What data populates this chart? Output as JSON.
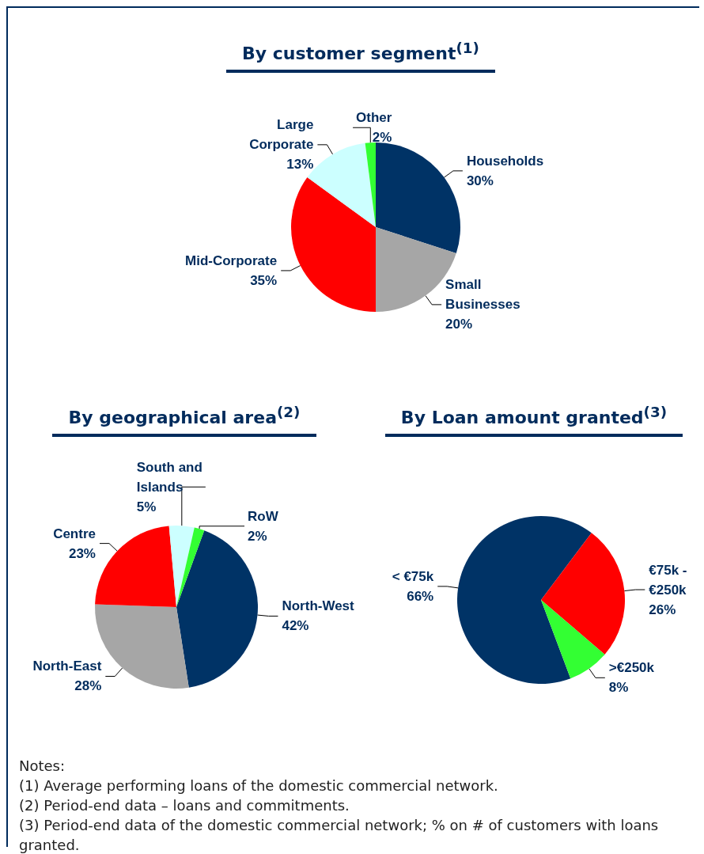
{
  "chart_data": [
    {
      "type": "pie",
      "title": "By customer segment$^{(1)}$",
      "categories": [
        "Households",
        "Small Businesses",
        "Mid-Corporate",
        "Large Corporate",
        "Other"
      ],
      "values": [
        30,
        20,
        35,
        13,
        2
      ],
      "colors": [
        "#003366",
        "#a6a6a6",
        "#ff0000",
        "#ccffff",
        "#33ff33"
      ],
      "value_labels": [
        "30%",
        "20%",
        "35%",
        "13%",
        "2%"
      ],
      "data_labels": true,
      "legend": false
    },
    {
      "type": "pie",
      "title": "By geographical area$^{(2)}$",
      "categories": [
        "North-West",
        "North-East",
        "Centre",
        "South and Islands",
        "RoW"
      ],
      "values": [
        42,
        28,
        23,
        5,
        2
      ],
      "colors": [
        "#003366",
        "#a6a6a6",
        "#ff0000",
        "#ccffff",
        "#33ff33"
      ],
      "value_labels": [
        "42%",
        "28%",
        "23%",
        "5%",
        "2%"
      ],
      "data_labels": true,
      "legend": false
    },
    {
      "type": "pie",
      "title": "By Loan amount granted$^{(3)}$",
      "categories": [
        "< €75k",
        "€75k - €250k",
        ">€250k"
      ],
      "values": [
        66,
        26,
        8
      ],
      "colors": [
        "#003366",
        "#ff0000",
        "#33ff33"
      ],
      "value_labels": [
        "66%",
        "26%",
        "8%"
      ],
      "data_labels": true,
      "legend": false,
      "annotations": [
        "Notes:",
        "(1) Average performing loans of the domestic commercial network.",
        "(2) Period-end data – loans and commitments.",
        "(3) Period-end data of the domestic commercial network; % on # of customers with loans granted."
      ]
    }
  ]
}
